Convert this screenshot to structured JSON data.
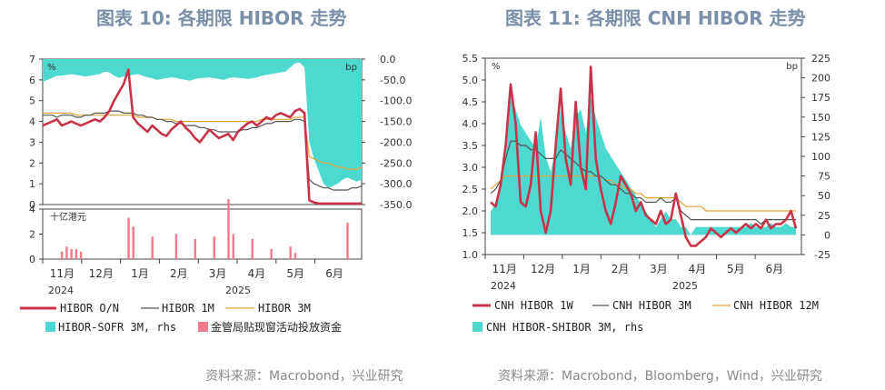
{
  "left": {
    "title": "图表 10: 各期限 HIBOR 走势",
    "source": "资料来源：Macrobond，兴业研究",
    "upper_left_unit": "%",
    "upper_right_unit": "bp",
    "lower_unit": "十亿港元",
    "x_ticks": [
      "11月",
      "12月",
      "1月",
      "2月",
      "3月",
      "4月",
      "5月",
      "6月"
    ],
    "years": [
      "2024",
      "2025"
    ],
    "legend": [
      "HIBOR O/N",
      "HIBOR 1M",
      "HIBOR 3M",
      "HIBOR-SOFR 3M, rhs",
      "金管局贴现窗活动投放资金"
    ],
    "colors": {
      "on": "#c8334a",
      "m1": "#555555",
      "m3": "#e6a234",
      "spread": "#4dd9cf",
      "bars": "#f07a8c"
    }
  },
  "right": {
    "title": "图表 11: 各期限 CNH HIBOR 走势",
    "source": "资料来源：Macrobond，Bloomberg，Wind，兴业研究",
    "left_unit": "%",
    "right_unit": "bp",
    "x_ticks": [
      "11月",
      "12月",
      "1月",
      "2月",
      "3月",
      "4月",
      "5月",
      "6月"
    ],
    "years": [
      "2024",
      "2025"
    ],
    "legend": [
      "CNH HIBOR 1W",
      "CNH HIBOR 3M",
      "CNH HIBOR 12M",
      "CNH HIBOR-SHIBOR 3M, rhs"
    ],
    "colors": {
      "w1": "#c8334a",
      "m3": "#555555",
      "m12": "#e6a234",
      "spread": "#4dd9cf"
    }
  },
  "chart_data": [
    {
      "type": "line",
      "title": "图表 10: 各期限 HIBOR 走势",
      "ylim": [
        0,
        7
      ],
      "ylim_rhs": [
        -350,
        0
      ],
      "yticks": [
        0,
        1,
        2,
        3,
        4,
        5,
        6,
        7
      ],
      "yticks_rhs": [
        "0.0",
        "-50.0",
        "-100.0",
        "-150.0",
        "-200.0",
        "-250.0",
        "-300.0",
        "-350.0"
      ],
      "x_ticks": [
        "11月",
        "12月",
        "1月",
        "2月",
        "3月",
        "4月",
        "5月",
        "6月"
      ],
      "series": [
        {
          "name": "HIBOR O/N",
          "values": [
            3.8,
            3.9,
            4.0,
            4.1,
            3.8,
            3.9,
            4.0,
            3.9,
            3.8,
            3.9,
            4.0,
            4.1,
            4.0,
            4.2,
            4.5,
            5.0,
            5.4,
            5.8,
            6.5,
            4.2,
            3.9,
            3.7,
            3.5,
            3.8,
            3.6,
            3.4,
            3.3,
            3.6,
            3.8,
            4.0,
            3.7,
            3.5,
            3.2,
            3.0,
            3.3,
            3.6,
            3.4,
            3.2,
            3.3,
            3.4,
            3.1,
            3.5,
            3.7,
            3.9,
            4.0,
            3.8,
            4.0,
            4.2,
            4.1,
            4.3,
            4.4,
            4.3,
            4.2,
            4.5,
            4.6,
            4.4,
            0.2,
            0.1,
            0.05,
            0.05,
            0.05,
            0.05,
            0.05,
            0.05,
            0.05,
            0.05,
            0.05,
            0.05
          ]
        },
        {
          "name": "HIBOR 1M",
          "values": [
            4.3,
            4.3,
            4.3,
            4.2,
            4.3,
            4.3,
            4.3,
            4.2,
            4.2,
            4.3,
            4.3,
            4.4,
            4.4,
            4.4,
            4.5,
            4.5,
            4.5,
            4.4,
            4.4,
            4.4,
            4.3,
            4.3,
            4.2,
            4.2,
            4.1,
            4.1,
            4.0,
            4.0,
            3.9,
            3.9,
            3.8,
            3.8,
            3.8,
            3.7,
            3.7,
            3.6,
            3.6,
            3.5,
            3.5,
            3.5,
            3.5,
            3.5,
            3.6,
            3.6,
            3.7,
            3.7,
            3.8,
            3.9,
            3.9,
            4.0,
            4.0,
            4.0,
            4.0,
            4.1,
            4.1,
            4.0,
            1.2,
            1.0,
            0.9,
            0.8,
            0.8,
            0.7,
            0.7,
            0.7,
            0.7,
            0.8,
            0.8,
            0.9
          ]
        },
        {
          "name": "HIBOR 3M",
          "values": [
            4.4,
            4.4,
            4.4,
            4.4,
            4.4,
            4.4,
            4.4,
            4.3,
            4.3,
            4.3,
            4.3,
            4.3,
            4.3,
            4.3,
            4.3,
            4.3,
            4.3,
            4.3,
            4.3,
            4.3,
            4.2,
            4.2,
            4.2,
            4.2,
            4.1,
            4.1,
            4.1,
            4.1,
            4.0,
            4.0,
            4.0,
            4.0,
            4.0,
            4.0,
            4.0,
            4.0,
            4.0,
            4.0,
            4.0,
            4.0,
            4.0,
            4.0,
            4.0,
            4.0,
            4.0,
            4.0,
            4.1,
            4.1,
            4.1,
            4.1,
            4.1,
            4.1,
            4.1,
            4.2,
            4.2,
            4.2,
            2.3,
            2.2,
            2.1,
            2.0,
            2.0,
            1.9,
            1.8,
            1.8,
            1.7,
            1.7,
            1.7,
            1.8
          ]
        },
        {
          "name": "HIBOR-SOFR 3M, rhs",
          "values": [
            -55,
            -50,
            -45,
            -40,
            -40,
            -38,
            -36,
            -38,
            -40,
            -42,
            -40,
            -38,
            -36,
            -30,
            -32,
            -40,
            -45,
            -42,
            -40,
            -38,
            -36,
            -40,
            -44,
            -46,
            -50,
            -48,
            -46,
            -44,
            -45,
            -48,
            -50,
            -52,
            -48,
            -46,
            -45,
            -44,
            -46,
            -48,
            -50,
            -46,
            -44,
            -45,
            -46,
            -48,
            -46,
            -44,
            -40,
            -38,
            -36,
            -34,
            -32,
            -30,
            -20,
            -10,
            -8,
            -20,
            -200,
            -240,
            -270,
            -300,
            -310,
            -305,
            -300,
            -290,
            -285,
            -290,
            -295,
            -290
          ]
        }
      ],
      "bars": {
        "name": "金管局贴现窗活动投放资金",
        "ylim": [
          0,
          4
        ],
        "yticks": [
          0,
          2,
          4
        ],
        "values": [
          0,
          0,
          0,
          0,
          0.6,
          1,
          0.8,
          0.8,
          0.6,
          0,
          0,
          0,
          0,
          0,
          0,
          0,
          0,
          0,
          3.3,
          2.6,
          0,
          0,
          0,
          1.8,
          0,
          0,
          0,
          0,
          2,
          0,
          0,
          0,
          1.6,
          0,
          0,
          0,
          1.8,
          0,
          0,
          4.8,
          2,
          0,
          0,
          0,
          1.6,
          0,
          0,
          0,
          0.8,
          0,
          0,
          0,
          1,
          0.5,
          0,
          0,
          0,
          0,
          0,
          0,
          0,
          0,
          0,
          0,
          2.9,
          0,
          0,
          0
        ]
      }
    },
    {
      "type": "line",
      "title": "图表 11: 各期限 CNH HIBOR 走势",
      "ylim": [
        1.0,
        5.5
      ],
      "ylim_rhs": [
        -25,
        225
      ],
      "yticks": [
        "1.0",
        "1.5",
        "2.0",
        "2.5",
        "3.0",
        "3.5",
        "4.0",
        "4.5",
        "5.0",
        "5.5"
      ],
      "yticks_rhs": [
        -25,
        0,
        25,
        50,
        75,
        100,
        125,
        150,
        175,
        200,
        225
      ],
      "x_ticks": [
        "11月",
        "12月",
        "1月",
        "2月",
        "3月",
        "4月",
        "5月",
        "6月"
      ],
      "series": [
        {
          "name": "CNH HIBOR 1W",
          "values": [
            2.2,
            2.1,
            2.6,
            3.5,
            4.9,
            4.0,
            2.2,
            2.1,
            2.6,
            3.8,
            2.0,
            1.5,
            2.0,
            3.5,
            4.8,
            3.2,
            2.6,
            4.5,
            3.0,
            2.5,
            5.3,
            3.2,
            2.5,
            2.0,
            1.7,
            2.2,
            2.8,
            2.6,
            2.4,
            2.0,
            2.2,
            1.9,
            1.8,
            1.7,
            2.0,
            1.7,
            1.8,
            2.4,
            1.9,
            1.4,
            1.2,
            1.2,
            1.3,
            1.4,
            1.6,
            1.5,
            1.4,
            1.5,
            1.6,
            1.5,
            1.6,
            1.7,
            1.6,
            1.7,
            1.6,
            1.8,
            1.6,
            1.7,
            1.7,
            1.8,
            2.0,
            1.6
          ]
        },
        {
          "name": "CNH HIBOR 3M",
          "values": [
            2.4,
            2.5,
            2.7,
            3.2,
            3.6,
            3.6,
            3.5,
            3.5,
            3.4,
            3.4,
            3.3,
            3.2,
            3.2,
            3.2,
            3.4,
            3.3,
            3.2,
            3.1,
            3.0,
            2.9,
            2.9,
            2.8,
            2.8,
            2.7,
            2.6,
            2.6,
            2.5,
            2.4,
            2.4,
            2.3,
            2.3,
            2.2,
            2.2,
            2.2,
            2.3,
            2.2,
            2.2,
            2.3,
            2.0,
            1.9,
            1.8,
            1.8,
            1.8,
            1.8,
            1.8,
            1.8,
            1.8,
            1.8,
            1.8,
            1.8,
            1.8,
            1.8,
            1.8,
            1.8,
            1.7,
            1.8,
            1.8,
            1.8,
            1.8,
            1.8,
            1.8,
            1.8
          ]
        },
        {
          "name": "CNH HIBOR 12M",
          "values": [
            2.5,
            2.6,
            2.7,
            2.8,
            2.8,
            2.8,
            2.8,
            2.8,
            2.8,
            2.8,
            2.8,
            2.8,
            2.8,
            2.8,
            2.8,
            2.8,
            2.8,
            2.8,
            2.8,
            2.8,
            2.8,
            2.8,
            2.8,
            2.7,
            2.7,
            2.6,
            2.6,
            2.5,
            2.5,
            2.4,
            2.4,
            2.3,
            2.3,
            2.3,
            2.3,
            2.3,
            2.3,
            2.3,
            2.2,
            2.1,
            2.1,
            2.1,
            2.1,
            2.0,
            2.0,
            2.0,
            2.0,
            2.0,
            2.0,
            2.0,
            2.0,
            2.0,
            2.0,
            2.0,
            2.0,
            2.0,
            2.0,
            2.0,
            2.0,
            2.0,
            2.0,
            2.0
          ]
        },
        {
          "name": "CNH HIBOR-SHIBOR 3M, rhs",
          "values": [
            30,
            40,
            60,
            100,
            175,
            160,
            140,
            130,
            120,
            110,
            150,
            100,
            80,
            110,
            160,
            130,
            110,
            150,
            160,
            130,
            175,
            150,
            130,
            110,
            100,
            90,
            80,
            70,
            60,
            50,
            40,
            30,
            20,
            10,
            20,
            30,
            20,
            20,
            10,
            10,
            0,
            10,
            10,
            10,
            10,
            10,
            10,
            10,
            10,
            10,
            10,
            10,
            15,
            10,
            10,
            10,
            15,
            10,
            10,
            15,
            10,
            10
          ]
        }
      ]
    }
  ]
}
